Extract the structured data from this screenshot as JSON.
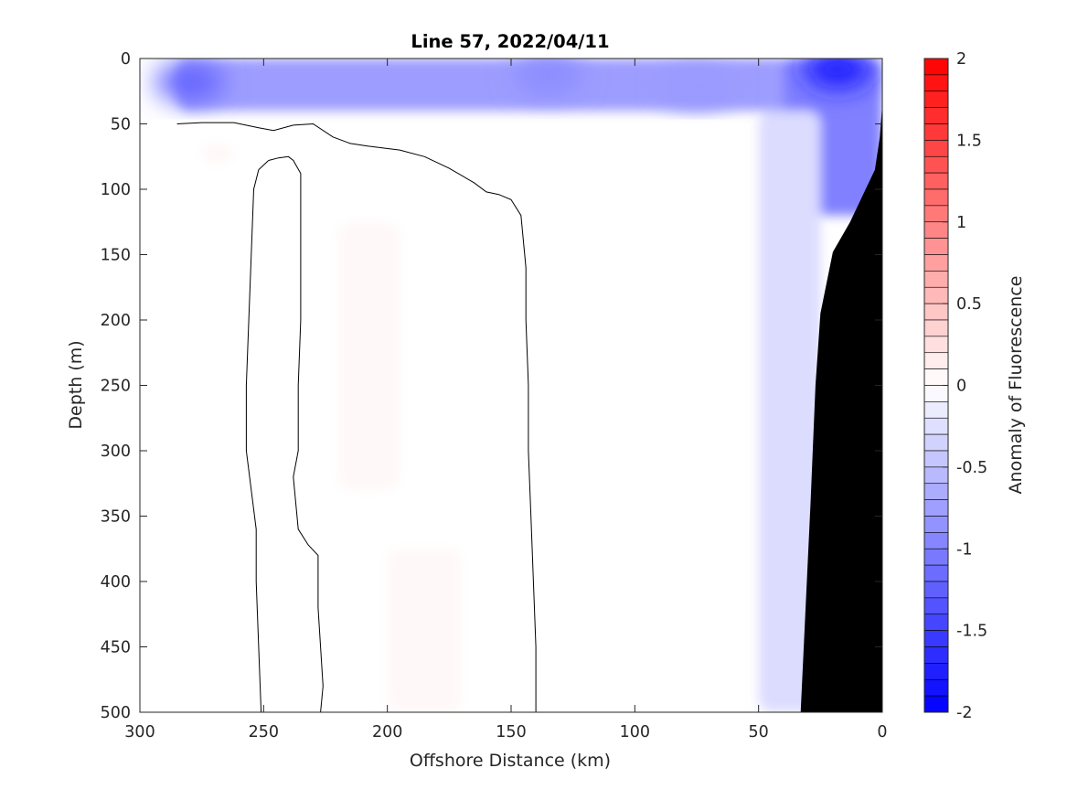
{
  "chart_data": {
    "type": "heatmap",
    "title": "Line 57, 2022/04/11",
    "xlabel": "Offshore Distance (km)",
    "ylabel": "Depth (m)",
    "xlim": [
      300,
      0
    ],
    "ylim": [
      500,
      0
    ],
    "x_reversed": true,
    "y_reversed": true,
    "xticks": [
      300,
      250,
      200,
      150,
      100,
      50,
      0
    ],
    "yticks": [
      0,
      50,
      100,
      150,
      200,
      250,
      300,
      350,
      400,
      450,
      500
    ],
    "colorbar": {
      "label": "Anomaly of Fluorescence",
      "range": [
        -2,
        2
      ],
      "step": 0.1,
      "ticks": [
        2,
        1.5,
        1,
        0.5,
        0,
        -0.5,
        -1,
        -1.5,
        -2
      ],
      "tick_labels": [
        "2",
        "1.5",
        "1",
        "0.5",
        "0",
        "-0.5",
        "-1",
        "-1.5",
        "-2"
      ],
      "low_color": "#0000ff",
      "mid_color": "#ffffff",
      "high_color": "#ff0000"
    },
    "zero_contour_lines": [
      [
        [
          285,
          50
        ],
        [
          275,
          49
        ],
        [
          262,
          49
        ],
        [
          252,
          53
        ],
        [
          246,
          55
        ],
        [
          238,
          51
        ],
        [
          230,
          50
        ],
        [
          222,
          60
        ],
        [
          215,
          65
        ],
        [
          208,
          67
        ],
        [
          195,
          70
        ],
        [
          185,
          75
        ],
        [
          175,
          84
        ],
        [
          165,
          95
        ],
        [
          160,
          102
        ],
        [
          155,
          104
        ],
        [
          150,
          108
        ],
        [
          146,
          120
        ],
        [
          145,
          140
        ],
        [
          144,
          160
        ],
        [
          144,
          200
        ],
        [
          143,
          250
        ],
        [
          143,
          300
        ],
        [
          142,
          350
        ],
        [
          141,
          400
        ],
        [
          140,
          450
        ],
        [
          140,
          500
        ]
      ],
      [
        [
          248,
          78
        ],
        [
          244,
          76
        ],
        [
          240,
          75
        ],
        [
          238,
          78
        ],
        [
          235,
          88
        ],
        [
          235,
          200
        ],
        [
          236,
          250
        ],
        [
          236,
          300
        ],
        [
          238,
          320
        ],
        [
          237,
          340
        ],
        [
          236,
          360
        ],
        [
          232,
          372
        ],
        [
          228,
          380
        ],
        [
          228,
          420
        ],
        [
          227,
          450
        ],
        [
          226,
          480
        ],
        [
          227,
          500
        ]
      ],
      [
        [
          248,
          78
        ],
        [
          252,
          85
        ],
        [
          254,
          100
        ],
        [
          255,
          150
        ],
        [
          256,
          200
        ],
        [
          257,
          250
        ],
        [
          257,
          300
        ],
        [
          255,
          330
        ],
        [
          253,
          360
        ],
        [
          253,
          400
        ],
        [
          252,
          450
        ],
        [
          251,
          500
        ]
      ]
    ],
    "anomaly_regions": [
      {
        "sign": "negative",
        "depth_range_m": [
          0,
          40
        ],
        "distance_range_km": [
          285,
          0
        ],
        "min_value": -1.4
      },
      {
        "sign": "negative",
        "depth_range_m": [
          0,
          120
        ],
        "distance_range_km": [
          40,
          0
        ],
        "min_value": -1.8
      },
      {
        "sign": "negative",
        "depth_range_m": [
          40,
          500
        ],
        "distance_range_km": [
          50,
          25
        ],
        "min_value": -0.5
      },
      {
        "sign": "positive",
        "depth_range_m": [
          125,
          330
        ],
        "distance_range_km": [
          220,
          195
        ],
        "max_value": 0.1
      },
      {
        "sign": "positive",
        "depth_range_m": [
          375,
          500
        ],
        "distance_range_km": [
          200,
          170
        ],
        "max_value": 0.1
      },
      {
        "sign": "positive",
        "depth_range_m": [
          65,
          80
        ],
        "distance_range_km": [
          275,
          262
        ],
        "max_value": 0.1
      }
    ],
    "bathymetry_mask": [
      [
        0,
        35
      ],
      [
        1,
        60
      ],
      [
        3,
        85
      ],
      [
        8,
        105
      ],
      [
        13,
        125
      ],
      [
        20,
        148
      ],
      [
        25,
        195
      ],
      [
        27,
        250
      ],
      [
        29,
        340
      ],
      [
        31,
        420
      ],
      [
        33,
        500
      ],
      [
        0,
        500
      ]
    ],
    "data_start_km": 285
  }
}
